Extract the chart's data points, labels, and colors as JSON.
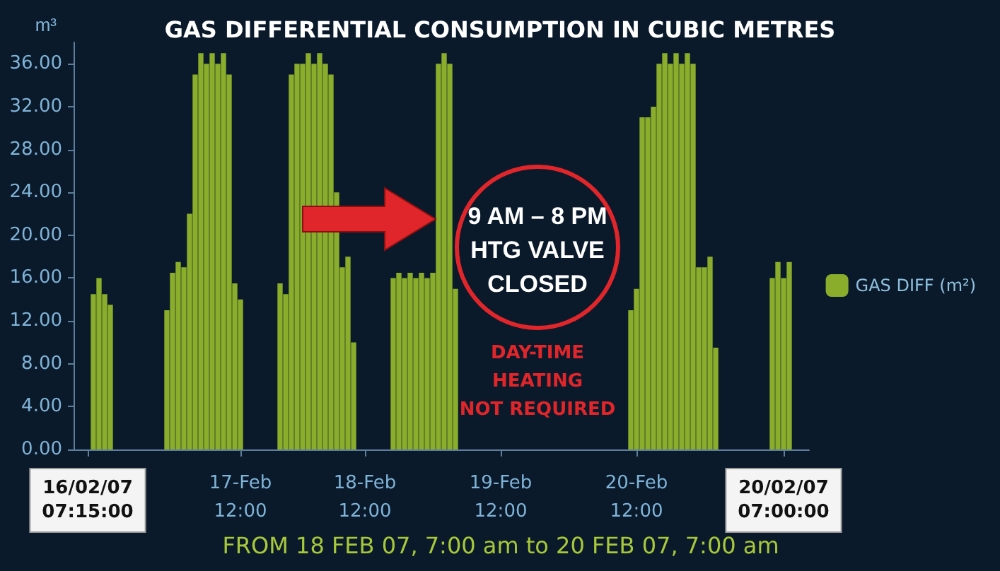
{
  "chart_data": {
    "type": "bar",
    "title": "GAS DIFFERENTIAL CONSUMPTION IN CUBIC METRES",
    "ylabel": "m³",
    "categories": [
      null,
      null,
      "16/02/07\n07:15:00",
      null,
      null,
      null,
      null,
      null,
      null,
      null,
      null,
      null,
      null,
      null,
      null,
      null,
      null,
      null,
      null,
      null,
      null,
      null,
      null,
      null,
      null,
      null,
      null,
      null,
      null,
      "17-Feb\n12:00",
      null,
      null,
      null,
      null,
      null,
      null,
      null,
      null,
      null,
      null,
      null,
      null,
      null,
      null,
      null,
      null,
      null,
      null,
      null,
      null,
      null,
      "18-Feb\n12:00",
      null,
      null,
      null,
      null,
      null,
      null,
      null,
      null,
      null,
      null,
      null,
      null,
      null,
      null,
      null,
      null,
      null,
      null,
      null,
      null,
      null,
      null,
      null,
      "19-Feb\n12:00",
      null,
      null,
      null,
      null,
      null,
      null,
      null,
      null,
      null,
      null,
      null,
      null,
      null,
      null,
      null,
      null,
      null,
      null,
      null,
      null,
      null,
      null,
      null,
      "20-Feb\n12:00",
      null,
      null,
      null,
      null,
      null,
      null,
      null,
      null,
      null,
      null,
      null,
      null,
      null,
      null,
      null,
      null,
      null,
      null,
      null,
      null,
      null,
      null,
      null,
      null,
      null,
      "20/02/07\n07:00:00",
      null,
      null,
      null,
      null
    ],
    "series": [
      {
        "name": "GAS DIFF (m²)",
        "color": "#8aae2c",
        "values": [
          null,
          null,
          null,
          14.5,
          16,
          14.5,
          13.5,
          null,
          null,
          null,
          null,
          null,
          null,
          null,
          null,
          null,
          13,
          16.5,
          17.5,
          17,
          22,
          35,
          37,
          36,
          37,
          36,
          37,
          35,
          15.5,
          14,
          null,
          null,
          null,
          null,
          null,
          null,
          15.5,
          14.5,
          35,
          36,
          36,
          37,
          36,
          37,
          36,
          35,
          24,
          17,
          18,
          10,
          null,
          null,
          null,
          null,
          null,
          null,
          16,
          16.5,
          16,
          16.5,
          16,
          16.5,
          16,
          16.5,
          36,
          37,
          36,
          15,
          null,
          null,
          null,
          null,
          null,
          null,
          null,
          null,
          null,
          null,
          null,
          null,
          null,
          null,
          null,
          null,
          null,
          null,
          null,
          null,
          null,
          null,
          null,
          null,
          null,
          null,
          null,
          null,
          null,
          null,
          13,
          15,
          31,
          31,
          32,
          36,
          37,
          36,
          37,
          36,
          37,
          36,
          17,
          17,
          18,
          9.5,
          null,
          null,
          null,
          null,
          null,
          null,
          null,
          null,
          null,
          16,
          17.5,
          16,
          17.5,
          null,
          null,
          null
        ]
      }
    ],
    "ylim": [
      0,
      38
    ],
    "yticks": [
      {
        "value": 0,
        "label": "0.00"
      },
      {
        "value": 4,
        "label": "4.00"
      },
      {
        "value": 8,
        "label": "8.00"
      },
      {
        "value": 12,
        "label": "12.00"
      },
      {
        "value": 16,
        "label": "16.00"
      },
      {
        "value": 20,
        "label": "20.00"
      },
      {
        "value": 24,
        "label": "24.00"
      },
      {
        "value": 28,
        "label": "28.00"
      },
      {
        "value": 32,
        "label": "32.00"
      },
      {
        "value": 36,
        "label": "36.00"
      }
    ],
    "grid": false,
    "legend": "right",
    "annotations": [
      "9 AM – 8 PM\nHTG VALVE\nCLOSED",
      "DAY-TIME\nHEATING\nNOT REQUIRED",
      "FROM 18 FEB 07, 7:00 am to 20 FEB 07, 7:00 am"
    ]
  }
}
